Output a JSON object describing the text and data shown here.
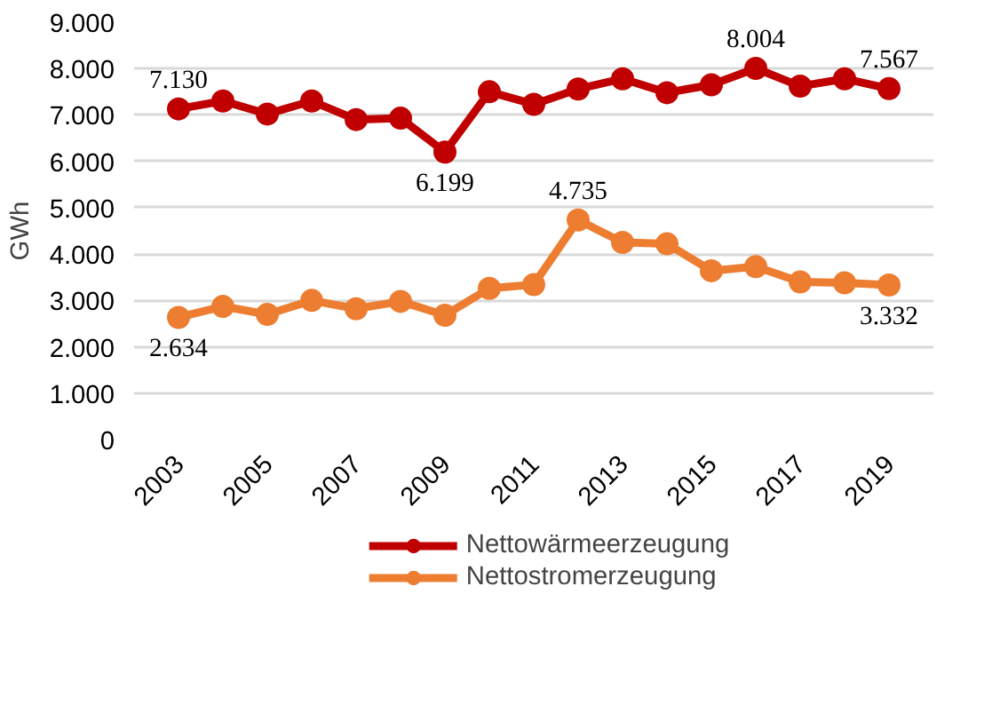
{
  "chart_data": {
    "type": "line",
    "ylabel": "GWh",
    "x": [
      2003,
      2004,
      2005,
      2006,
      2007,
      2008,
      2009,
      2010,
      2011,
      2012,
      2013,
      2014,
      2015,
      2016,
      2017,
      2018,
      2019
    ],
    "series": [
      {
        "name": "Nettowärmeerzeugung",
        "color": "#c00000",
        "values": [
          7130,
          7300,
          7020,
          7300,
          6900,
          6930,
          6199,
          7500,
          7230,
          7560,
          7780,
          7480,
          7650,
          8004,
          7620,
          7780,
          7567
        ],
        "value_labels": [
          "7.130",
          null,
          null,
          null,
          null,
          null,
          "6.199",
          null,
          null,
          null,
          null,
          null,
          null,
          "8.004",
          null,
          null,
          "7.567"
        ]
      },
      {
        "name": "Nettostromerzeugung",
        "color": "#ed7d31",
        "values": [
          2634,
          2870,
          2700,
          3000,
          2820,
          2980,
          2680,
          3260,
          3340,
          4735,
          4250,
          4220,
          3640,
          3730,
          3400,
          3380,
          3332
        ],
        "value_labels": [
          "2.634",
          null,
          null,
          null,
          null,
          null,
          null,
          null,
          null,
          "4.735",
          null,
          null,
          null,
          null,
          null,
          null,
          "3.332"
        ]
      }
    ],
    "xlim": [
      2002,
      2020
    ],
    "xticks": [
      2003,
      2005,
      2007,
      2009,
      2011,
      2013,
      2015,
      2017,
      2019
    ],
    "ylim": [
      0,
      9000
    ],
    "yticks": [
      {
        "value": 0,
        "label": "0"
      },
      {
        "value": 1000,
        "label": "1.000"
      },
      {
        "value": 2000,
        "label": "2.000"
      },
      {
        "value": 3000,
        "label": "3.000"
      },
      {
        "value": 4000,
        "label": "4.000"
      },
      {
        "value": 5000,
        "label": "5.000"
      },
      {
        "value": 6000,
        "label": "6.000"
      },
      {
        "value": 7000,
        "label": "7.000"
      },
      {
        "value": 8000,
        "label": "8.000"
      },
      {
        "value": 9000,
        "label": "9.000"
      }
    ],
    "grid": "y",
    "legend": "bottom",
    "marker": "circle",
    "line_style": "solid"
  }
}
